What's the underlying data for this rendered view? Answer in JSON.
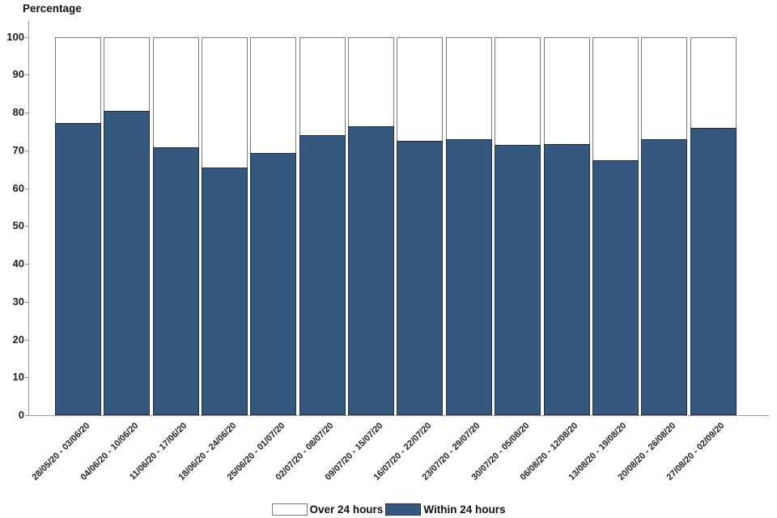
{
  "title": "Percentage",
  "chart_data": {
    "type": "bar",
    "stacked": true,
    "title": "",
    "xlabel": "",
    "ylabel": "Percentage",
    "ylim": [
      0,
      100
    ],
    "yticks": [
      0,
      10,
      20,
      30,
      40,
      50,
      60,
      70,
      80,
      90,
      100
    ],
    "grid": false,
    "legend_position": "bottom",
    "categories": [
      "28/05/20 - 03/06/20",
      "04/06/20 - 10/06/20",
      "11/06/20 - 17/06/20",
      "18/06/20 - 24/06/20",
      "25/06/20 - 01/07/20",
      "02/07/20 - 08/07/20",
      "09/07/20 - 15/07/20",
      "16/07/20 - 22/07/20",
      "23/07/20 - 29/07/20",
      "30/07/20 - 05/08/20",
      "06/08/20 - 12/08/20",
      "13/08/20 - 19/08/20",
      "20/08/20 - 26/08/20",
      "27/08/20 - 02/09/20"
    ],
    "series": [
      {
        "name": "Within 24 hours",
        "color": "#35587F",
        "values": [
          77.3,
          80.4,
          70.9,
          65.5,
          69.3,
          74.1,
          76.4,
          72.5,
          72.9,
          71.4,
          71.7,
          67.4,
          73.0,
          76.0
        ]
      },
      {
        "name": "Over 24 hours",
        "color": "#FFFFFF",
        "values": [
          22.7,
          19.6,
          29.1,
          34.5,
          30.7,
          25.9,
          23.6,
          27.5,
          27.1,
          28.6,
          28.3,
          32.6,
          27.0,
          24.0
        ]
      }
    ]
  },
  "legend": {
    "items": [
      {
        "label": "Over 24 hours",
        "color": "#FFFFFF"
      },
      {
        "label": "Within 24 hours",
        "color": "#35587F"
      }
    ]
  }
}
